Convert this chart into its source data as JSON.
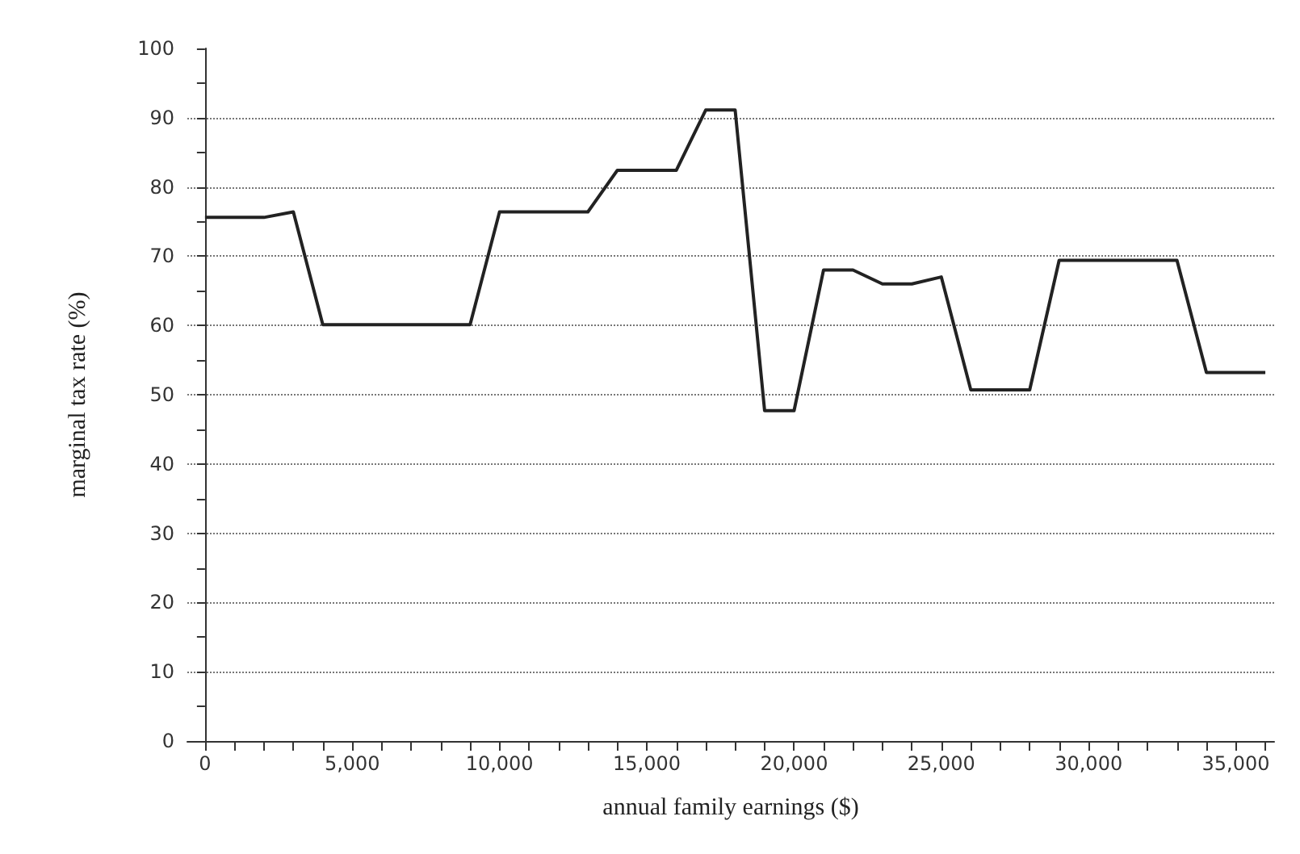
{
  "chart_data": {
    "type": "line",
    "xlabel": "annual family earnings ($)",
    "ylabel": "marginal tax rate (%)",
    "x": [
      0,
      1000,
      2000,
      3000,
      4000,
      5000,
      6000,
      7000,
      8000,
      9000,
      10000,
      11000,
      12000,
      13000,
      14000,
      15000,
      16000,
      17000,
      18000,
      19000,
      20000,
      21000,
      22000,
      23000,
      24000,
      25000,
      26000,
      27000,
      28000,
      29000,
      30000,
      31000,
      32000,
      33000,
      34000,
      35000,
      36000
    ],
    "series": [
      {
        "color": "#222222",
        "values": [
          75.6,
          75.6,
          75.6,
          76.4,
          60.1,
          60.1,
          60.1,
          60.1,
          60.1,
          60.1,
          76.4,
          76.4,
          76.4,
          76.4,
          82.4,
          82.4,
          82.4,
          91.1,
          91.1,
          47.7,
          47.7,
          68.0,
          68.0,
          66.0,
          66.0,
          67.0,
          50.7,
          50.7,
          50.7,
          69.4,
          69.4,
          69.4,
          69.4,
          69.4,
          53.2,
          53.2,
          53.2
        ]
      }
    ],
    "xlim": [
      -600,
      36300
    ],
    "ylim": [
      0,
      100
    ],
    "xticks": [
      {
        "value": 0,
        "label": "0"
      },
      {
        "value": 1000,
        "label": null
      },
      {
        "value": 2000,
        "label": null
      },
      {
        "value": 3000,
        "label": null
      },
      {
        "value": 4000,
        "label": null
      },
      {
        "value": 5000,
        "label": "5,000"
      },
      {
        "value": 6000,
        "label": null
      },
      {
        "value": 7000,
        "label": null
      },
      {
        "value": 8000,
        "label": null
      },
      {
        "value": 9000,
        "label": null
      },
      {
        "value": 10000,
        "label": "10,000"
      },
      {
        "value": 11000,
        "label": null
      },
      {
        "value": 12000,
        "label": null
      },
      {
        "value": 13000,
        "label": null
      },
      {
        "value": 14000,
        "label": null
      },
      {
        "value": 15000,
        "label": "15,000"
      },
      {
        "value": 16000,
        "label": null
      },
      {
        "value": 17000,
        "label": null
      },
      {
        "value": 18000,
        "label": null
      },
      {
        "value": 19000,
        "label": null
      },
      {
        "value": 20000,
        "label": "20,000"
      },
      {
        "value": 21000,
        "label": null
      },
      {
        "value": 22000,
        "label": null
      },
      {
        "value": 23000,
        "label": null
      },
      {
        "value": 24000,
        "label": null
      },
      {
        "value": 25000,
        "label": "25,000"
      },
      {
        "value": 26000,
        "label": null
      },
      {
        "value": 27000,
        "label": null
      },
      {
        "value": 28000,
        "label": null
      },
      {
        "value": 29000,
        "label": null
      },
      {
        "value": 30000,
        "label": "30,000"
      },
      {
        "value": 31000,
        "label": null
      },
      {
        "value": 32000,
        "label": null
      },
      {
        "value": 33000,
        "label": null
      },
      {
        "value": 34000,
        "label": null
      },
      {
        "value": 35000,
        "label": "35,000"
      },
      {
        "value": 36000,
        "label": null
      }
    ],
    "yticks": [
      0,
      {
        "value": 5,
        "label": null
      },
      10,
      {
        "value": 15,
        "label": null
      },
      20,
      {
        "value": 25,
        "label": null
      },
      30,
      {
        "value": 35,
        "label": null
      },
      40,
      {
        "value": 45,
        "label": null
      },
      50,
      {
        "value": 55,
        "label": null
      },
      60,
      {
        "value": 65,
        "label": null
      },
      70,
      {
        "value": 75,
        "label": null
      },
      80,
      {
        "value": 85,
        "label": null
      },
      90,
      {
        "value": 95,
        "label": null
      },
      100
    ],
    "grid": "y",
    "marker": "none",
    "line_style": "solid"
  }
}
